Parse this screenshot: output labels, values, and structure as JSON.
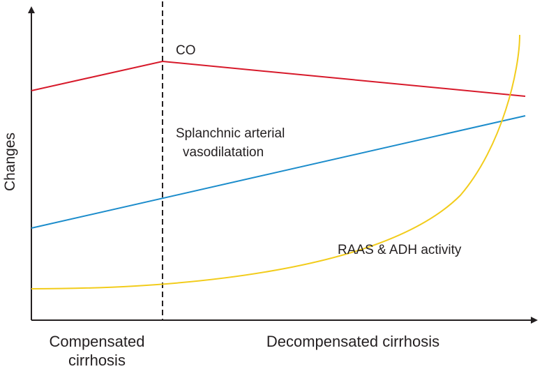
{
  "axes": {
    "y_label": "Changes",
    "x_label_left_line1": "Compensated",
    "x_label_left_line2": "cirrhosis",
    "x_label_right": "Decompensated cirrhosis"
  },
  "curves": {
    "co": {
      "label": "CO",
      "color": "#d7192a"
    },
    "splanchnic": {
      "label_line1": "Splanchnic arterial",
      "label_line2": "vasodilatation",
      "color": "#1b8ccb"
    },
    "raas": {
      "label": "RAAS & ADH activity",
      "color": "#f2cc1b"
    }
  },
  "colors": {
    "axis": "#231f20",
    "divider": "#231f20"
  }
}
